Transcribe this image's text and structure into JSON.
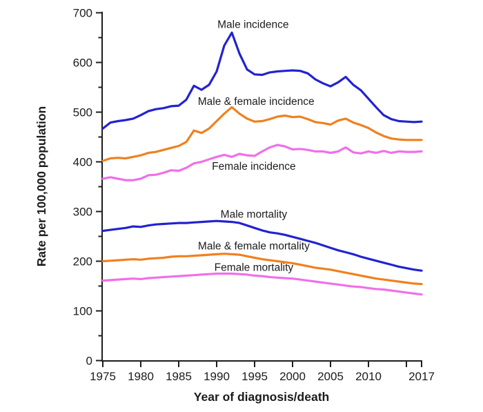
{
  "chart_data": {
    "type": "line",
    "title": "",
    "xlabel": "Year of diagnosis/death",
    "ylabel": "Rate per 100,000 population",
    "xlim": [
      1975,
      2017
    ],
    "ylim": [
      0,
      700
    ],
    "grid": false,
    "legend_position": "inline-labels",
    "x_ticks": [
      {
        "v": 1975,
        "label": "1975"
      },
      {
        "v": 1980,
        "label": "1980"
      },
      {
        "v": 1985,
        "label": "1985"
      },
      {
        "v": 1990,
        "label": "1990"
      },
      {
        "v": 1995,
        "label": "1995"
      },
      {
        "v": 2000,
        "label": "2000"
      },
      {
        "v": 2005,
        "label": "2005"
      },
      {
        "v": 2010,
        "label": "2010"
      },
      {
        "v": 2015,
        "label": ""
      },
      {
        "v": 2017,
        "label": "2017"
      }
    ],
    "y_major_ticks": [
      0,
      100,
      200,
      300,
      400,
      500,
      600,
      700
    ],
    "y_minor_ticks": [
      50,
      150,
      250,
      350,
      450,
      550,
      650
    ],
    "colors": {
      "male": "#2222D0",
      "male_female": "#F0801E",
      "female": "#F06FE9",
      "text": "#1c1c1c"
    },
    "x": [
      1975,
      1976,
      1977,
      1978,
      1979,
      1980,
      1981,
      1982,
      1983,
      1984,
      1985,
      1986,
      1987,
      1988,
      1989,
      1990,
      1991,
      1992,
      1993,
      1994,
      1995,
      1996,
      1997,
      1998,
      1999,
      2000,
      2001,
      2002,
      2003,
      2004,
      2005,
      2006,
      2007,
      2008,
      2009,
      2010,
      2011,
      2012,
      2013,
      2014,
      2015,
      2016,
      2017
    ],
    "series": [
      {
        "name": "Male incidence",
        "color_key": "male",
        "values": [
          467,
          479,
          482,
          484,
          487,
          494,
          502,
          506,
          508,
          512,
          513,
          525,
          553,
          545,
          555,
          582,
          634,
          660,
          618,
          586,
          576,
          575,
          580,
          582,
          583,
          584,
          583,
          578,
          566,
          558,
          552,
          560,
          571,
          555,
          544,
          527,
          510,
          494,
          486,
          482,
          481,
          480,
          481
        ]
      },
      {
        "name": "Male & female incidence",
        "color_key": "male_female",
        "values": [
          402,
          407,
          408,
          407,
          410,
          413,
          418,
          420,
          424,
          428,
          432,
          440,
          463,
          458,
          467,
          482,
          497,
          510,
          497,
          487,
          481,
          482,
          486,
          491,
          493,
          490,
          491,
          486,
          480,
          478,
          475,
          483,
          487,
          479,
          474,
          468,
          459,
          452,
          447,
          445,
          444,
          444,
          444
        ]
      },
      {
        "name": "Female incidence",
        "color_key": "female",
        "values": [
          366,
          369,
          366,
          363,
          363,
          366,
          373,
          374,
          378,
          383,
          382,
          388,
          397,
          400,
          405,
          410,
          414,
          410,
          416,
          413,
          412,
          421,
          429,
          434,
          431,
          425,
          426,
          424,
          421,
          421,
          418,
          421,
          429,
          419,
          417,
          421,
          418,
          422,
          418,
          421,
          420,
          420,
          421
        ]
      },
      {
        "name": "Male mortality",
        "color_key": "male",
        "values": [
          261,
          263,
          265,
          267,
          270,
          269,
          272,
          274,
          275,
          276,
          277,
          277,
          278,
          279,
          280,
          281,
          280,
          279,
          277,
          272,
          267,
          262,
          258,
          256,
          253,
          249,
          245,
          241,
          237,
          232,
          227,
          222,
          218,
          214,
          209,
          205,
          201,
          197,
          193,
          189,
          186,
          183,
          181
        ]
      },
      {
        "name": "Male & female mortality",
        "color_key": "male_female",
        "values": [
          200,
          201,
          202,
          203,
          204,
          203,
          205,
          206,
          207,
          209,
          210,
          210,
          211,
          212,
          213,
          214,
          215,
          214,
          213,
          210,
          207,
          204,
          202,
          200,
          198,
          196,
          193,
          190,
          187,
          185,
          183,
          180,
          177,
          174,
          171,
          168,
          165,
          163,
          161,
          159,
          157,
          155,
          154
        ]
      },
      {
        "name": "Female mortality",
        "color_key": "female",
        "values": [
          161,
          162,
          163,
          164,
          165,
          164,
          166,
          167,
          168,
          169,
          170,
          171,
          172,
          173,
          174,
          175,
          175,
          175,
          174,
          173,
          171,
          170,
          168,
          167,
          166,
          165,
          163,
          161,
          159,
          157,
          155,
          153,
          151,
          149,
          148,
          146,
          144,
          143,
          141,
          139,
          137,
          135,
          133
        ]
      }
    ],
    "annotations": [
      {
        "text": "Male incidence",
        "year": 1994.8,
        "value": 677
      },
      {
        "text": "Male & female incidence",
        "year": 1995.2,
        "value": 522
      },
      {
        "text": "Female incidence",
        "year": 1994.9,
        "value": 392
      },
      {
        "text": "Male mortality",
        "year": 1994.9,
        "value": 295
      },
      {
        "text": "Male & female mortality",
        "year": 1994.9,
        "value": 231
      },
      {
        "text": "Female mortality",
        "year": 1994.9,
        "value": 188
      }
    ]
  }
}
